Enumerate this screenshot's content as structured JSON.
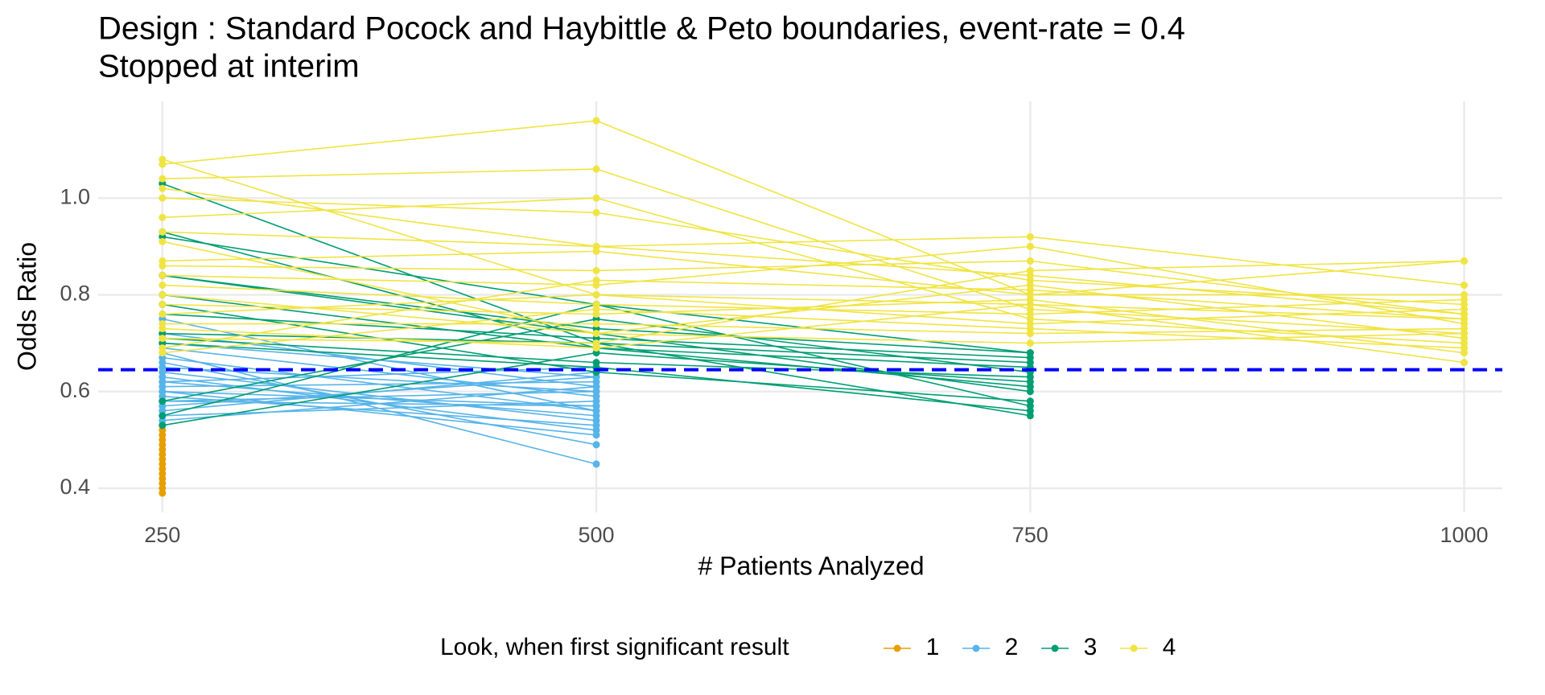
{
  "chart_data": {
    "type": "line",
    "title": "Design : Standard Pocock and Haybittle & Peto boundaries, event-rate = 0.4",
    "subtitle": "Stopped at interim",
    "x_label": "# Patients Analyzed",
    "y_label": "Odds Ratio",
    "legend_title": "Look, when first significant result",
    "legend": "bottom",
    "grid": true,
    "x": [
      250,
      500,
      750,
      1000
    ],
    "xlim": [
      213,
      1022
    ],
    "xticks": [
      250,
      500,
      750,
      1000
    ],
    "ylim": [
      0.35,
      1.2
    ],
    "yticks": [
      0.4,
      0.6,
      0.8,
      {
        "value": 1,
        "label": "1.0"
      }
    ],
    "hline": {
      "value": 0.645,
      "color": "#0000ff"
    },
    "series": [
      {
        "name": "1",
        "color": "#E69F00",
        "lines": [
          [
            0.39,
            null,
            null,
            null
          ],
          [
            0.4,
            null,
            null,
            null
          ],
          [
            0.41,
            null,
            null,
            null
          ],
          [
            0.42,
            null,
            null,
            null
          ],
          [
            0.43,
            null,
            null,
            null
          ],
          [
            0.44,
            null,
            null,
            null
          ],
          [
            0.45,
            null,
            null,
            null
          ],
          [
            0.46,
            null,
            null,
            null
          ],
          [
            0.47,
            null,
            null,
            null
          ],
          [
            0.48,
            null,
            null,
            null
          ],
          [
            0.49,
            null,
            null,
            null
          ],
          [
            0.5,
            null,
            null,
            null
          ],
          [
            0.51,
            null,
            null,
            null
          ],
          [
            0.52,
            null,
            null,
            null
          ],
          [
            0.53,
            null,
            null,
            null
          ]
        ]
      },
      {
        "name": "2",
        "color": "#56B4E9",
        "lines": [
          [
            0.75,
            0.56,
            null,
            null
          ],
          [
            0.68,
            0.45,
            null,
            null
          ],
          [
            0.66,
            0.49,
            null,
            null
          ],
          [
            0.63,
            0.52,
            null,
            null
          ],
          [
            0.62,
            0.55,
            null,
            null
          ],
          [
            0.6,
            0.57,
            null,
            null
          ],
          [
            0.58,
            0.6,
            null,
            null
          ],
          [
            0.57,
            0.63,
            null,
            null
          ],
          [
            0.56,
            0.64,
            null,
            null
          ],
          [
            0.55,
            0.58,
            null,
            null
          ],
          [
            0.64,
            0.54,
            null,
            null
          ],
          [
            0.61,
            0.62,
            null,
            null
          ],
          [
            0.59,
            0.53,
            null,
            null
          ],
          [
            0.72,
            0.61,
            null,
            null
          ],
          [
            0.69,
            0.59,
            null,
            null
          ],
          [
            0.67,
            0.56,
            null,
            null
          ],
          [
            0.65,
            0.6,
            null,
            null
          ],
          [
            0.54,
            0.61,
            null,
            null
          ],
          [
            0.62,
            0.65,
            null,
            null
          ],
          [
            0.6,
            0.51,
            null,
            null
          ],
          [
            0.7,
            0.63,
            null,
            null
          ],
          [
            0.58,
            0.57,
            null,
            null
          ]
        ]
      },
      {
        "name": "3",
        "color": "#009E73",
        "lines": [
          [
            1.03,
            0.7,
            0.55,
            null
          ],
          [
            0.92,
            0.78,
            0.57,
            null
          ],
          [
            0.84,
            0.72,
            0.6,
            null
          ],
          [
            0.8,
            0.69,
            0.65,
            null
          ],
          [
            0.78,
            0.64,
            0.58,
            null
          ],
          [
            0.72,
            0.7,
            0.66,
            null
          ],
          [
            0.71,
            0.66,
            0.63,
            null
          ],
          [
            0.58,
            0.75,
            0.64,
            null
          ],
          [
            0.55,
            0.78,
            0.68,
            null
          ],
          [
            0.53,
            0.68,
            0.62,
            null
          ],
          [
            0.84,
            0.73,
            0.68,
            null
          ],
          [
            0.93,
            0.69,
            0.61,
            null
          ],
          [
            0.76,
            0.71,
            0.67,
            null
          ],
          [
            0.7,
            0.65,
            0.56,
            null
          ]
        ]
      },
      {
        "name": "4",
        "color": "#F0E442",
        "lines": [
          [
            1.08,
            0.8,
            0.78,
            0.75
          ],
          [
            1.07,
            1.16,
            0.8,
            0.87
          ],
          [
            1.04,
            1.06,
            0.77,
            0.72
          ],
          [
            1.0,
            0.97,
            0.83,
            0.78
          ],
          [
            0.96,
            1.0,
            0.75,
            0.7
          ],
          [
            0.93,
            0.9,
            0.92,
            0.82
          ],
          [
            0.87,
            0.89,
            0.8,
            0.8
          ],
          [
            0.86,
            0.85,
            0.87,
            0.76
          ],
          [
            0.84,
            0.82,
            0.9,
            0.74
          ],
          [
            0.82,
            0.78,
            0.76,
            0.79
          ],
          [
            0.8,
            0.72,
            0.82,
            0.71
          ],
          [
            0.78,
            0.76,
            0.79,
            0.68
          ],
          [
            0.76,
            0.8,
            0.74,
            0.77
          ],
          [
            0.74,
            0.74,
            0.72,
            0.73
          ],
          [
            0.73,
            0.69,
            0.78,
            0.66
          ],
          [
            0.71,
            0.7,
            0.85,
            0.87
          ],
          [
            0.69,
            0.83,
            0.81,
            0.75
          ],
          [
            0.68,
            0.77,
            0.73,
            0.69
          ],
          [
            1.02,
            0.9,
            0.84,
            0.76
          ],
          [
            0.91,
            0.72,
            0.7,
            0.72
          ]
        ]
      }
    ]
  }
}
